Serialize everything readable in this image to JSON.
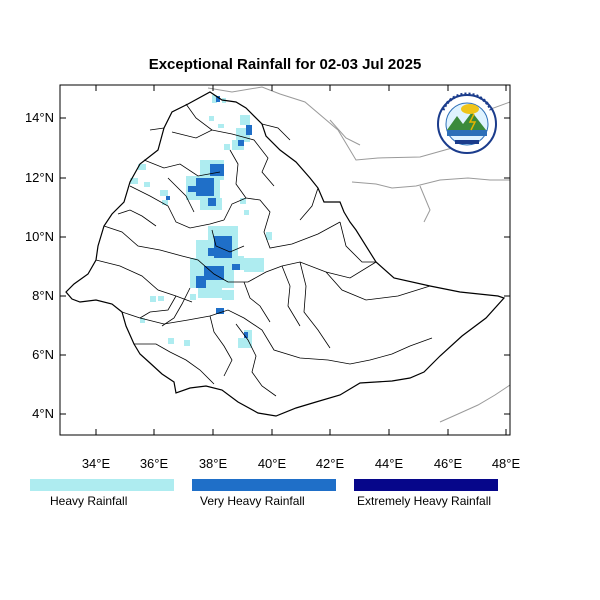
{
  "title": "Exceptional Rainfall for 02-03 Jul 2025",
  "colors": {
    "heavy": "#aeecf0",
    "very_heavy": "#1f6fc8",
    "extremely_heavy": "#06068a",
    "border": "#000000",
    "neighbor_border": "#9a9a9a"
  },
  "axes": {
    "x_ticks": [
      "34°E",
      "36°E",
      "38°E",
      "40°E",
      "42°E",
      "44°E",
      "46°E",
      "48°E"
    ],
    "y_ticks": [
      "14°N",
      "12°N",
      "10°N",
      "8°N",
      "6°N",
      "4°N"
    ]
  },
  "legend": [
    {
      "label": "Heavy Rainfall",
      "color": "#aeecf0"
    },
    {
      "label": "Very Heavy Rainfall",
      "color": "#1f6fc8"
    },
    {
      "label": "Extremely Heavy Rainfall",
      "color": "#06068a"
    }
  ],
  "logo": {
    "icon": "ethiopian-meteorology-institute-logo"
  }
}
